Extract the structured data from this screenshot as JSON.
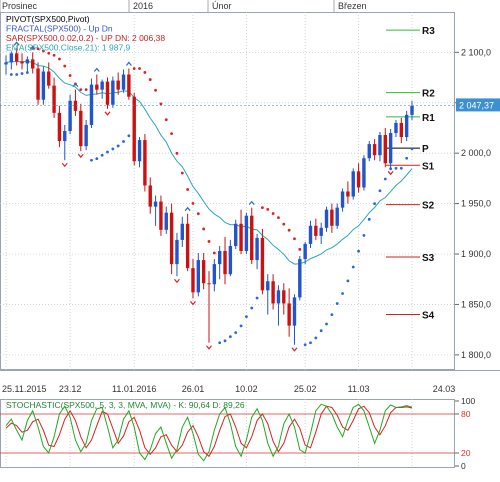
{
  "chart_data": [
    {
      "type": "candlestick",
      "instrument": "SPX500",
      "top_time_labels": [
        "Prosinec",
        "2016",
        "Únor",
        "Březen"
      ],
      "x_tick_labels": [
        "25.11.2015",
        "23.12",
        "11.01.2016",
        "26.01",
        "10.02",
        "25.02",
        "11.03",
        "24.03"
      ],
      "y_tick_labels": [
        "2 100,0",
        "2 050,0",
        "2 000,0",
        "1 950,0",
        "1 900,0",
        "1 850,0",
        "1 800,0"
      ],
      "ylim": [
        1785,
        2140
      ],
      "grid": true,
      "last_price": 2047.37,
      "last_price_label": "2 047,37",
      "indicator_legend": [
        {
          "text": "PIVOT(SPX500,Pivot)",
          "color": "#000000"
        },
        {
          "text": "FRACTAL(SPX500) - Up  Dn",
          "color": "#3355cc"
        },
        {
          "text": "SAR(SPX500,0.02,0.2) - UP  DN: 2 006,38",
          "color": "#cc2222"
        },
        {
          "text": "EMA(SPX500.Close,21): 1 987,9",
          "color": "#2aa7b8"
        }
      ],
      "pivot_levels": [
        {
          "name": "R3",
          "value": 2122,
          "color": "#33bb33"
        },
        {
          "name": "R2",
          "value": 2060,
          "color": "#33bb33"
        },
        {
          "name": "R1",
          "value": 2036,
          "color": "#33bb33"
        },
        {
          "name": "P",
          "value": 2005,
          "color": "#000000"
        },
        {
          "name": "S1",
          "value": 1988,
          "color": "#cc2222"
        },
        {
          "name": "S2",
          "value": 1949,
          "color": "#cc2222"
        },
        {
          "name": "S3",
          "value": 1897,
          "color": "#cc2222"
        },
        {
          "name": "S4",
          "value": 1840,
          "color": "#cc2222"
        }
      ],
      "candles": [
        {
          "o": 2088,
          "h": 2097,
          "l": 2078,
          "c": 2090
        },
        {
          "o": 2090,
          "h": 2101,
          "l": 2083,
          "c": 2099
        },
        {
          "o": 2099,
          "h": 2104,
          "l": 2087,
          "c": 2091
        },
        {
          "o": 2091,
          "h": 2099,
          "l": 2083,
          "c": 2089
        },
        {
          "o": 2089,
          "h": 2096,
          "l": 2081,
          "c": 2093
        },
        {
          "o": 2093,
          "h": 2100,
          "l": 2079,
          "c": 2084
        },
        {
          "o": 2084,
          "h": 2090,
          "l": 2048,
          "c": 2053
        },
        {
          "o": 2053,
          "h": 2086,
          "l": 2048,
          "c": 2081
        },
        {
          "o": 2081,
          "h": 2090,
          "l": 2064,
          "c": 2067
        },
        {
          "o": 2067,
          "h": 2075,
          "l": 2035,
          "c": 2040
        },
        {
          "o": 2040,
          "h": 2047,
          "l": 2006,
          "c": 2012
        },
        {
          "o": 2012,
          "h": 2028,
          "l": 1993,
          "c": 2022
        },
        {
          "o": 2022,
          "h": 2058,
          "l": 2019,
          "c": 2052
        },
        {
          "o": 2052,
          "h": 2063,
          "l": 2037,
          "c": 2042
        },
        {
          "o": 2042,
          "h": 2049,
          "l": 2002,
          "c": 2007
        },
        {
          "o": 2007,
          "h": 2033,
          "l": 2003,
          "c": 2028
        },
        {
          "o": 2028,
          "h": 2074,
          "l": 2025,
          "c": 2068
        },
        {
          "o": 2068,
          "h": 2078,
          "l": 2058,
          "c": 2063
        },
        {
          "o": 2063,
          "h": 2073,
          "l": 2054,
          "c": 2071
        },
        {
          "o": 2071,
          "h": 2075,
          "l": 2044,
          "c": 2048
        },
        {
          "o": 2048,
          "h": 2076,
          "l": 2045,
          "c": 2072
        },
        {
          "o": 2072,
          "h": 2080,
          "l": 2058,
          "c": 2063
        },
        {
          "o": 2063,
          "h": 2083,
          "l": 2060,
          "c": 2078
        },
        {
          "o": 2078,
          "h": 2084,
          "l": 2053,
          "c": 2056
        },
        {
          "o": 2056,
          "h": 2060,
          "l": 1988,
          "c": 1992
        },
        {
          "o": 1992,
          "h": 2016,
          "l": 1986,
          "c": 2013
        },
        {
          "o": 2013,
          "h": 2019,
          "l": 1962,
          "c": 1968
        },
        {
          "o": 1968,
          "h": 1976,
          "l": 1940,
          "c": 1947
        },
        {
          "o": 1947,
          "h": 1958,
          "l": 1928,
          "c": 1952
        },
        {
          "o": 1952,
          "h": 1958,
          "l": 1918,
          "c": 1924
        },
        {
          "o": 1924,
          "h": 1947,
          "l": 1920,
          "c": 1941
        },
        {
          "o": 1941,
          "h": 1950,
          "l": 1880,
          "c": 1890
        },
        {
          "o": 1890,
          "h": 1921,
          "l": 1878,
          "c": 1914
        },
        {
          "o": 1914,
          "h": 1937,
          "l": 1907,
          "c": 1930
        },
        {
          "o": 1930,
          "h": 1940,
          "l": 1883,
          "c": 1886
        },
        {
          "o": 1886,
          "h": 1895,
          "l": 1856,
          "c": 1862
        },
        {
          "o": 1862,
          "h": 1901,
          "l": 1858,
          "c": 1894
        },
        {
          "o": 1894,
          "h": 1901,
          "l": 1865,
          "c": 1871
        },
        {
          "o": 1871,
          "h": 1883,
          "l": 1812,
          "c": 1870
        },
        {
          "o": 1870,
          "h": 1895,
          "l": 1863,
          "c": 1890
        },
        {
          "o": 1890,
          "h": 1908,
          "l": 1875,
          "c": 1903
        },
        {
          "o": 1903,
          "h": 1917,
          "l": 1870,
          "c": 1880
        },
        {
          "o": 1880,
          "h": 1914,
          "l": 1878,
          "c": 1908
        },
        {
          "o": 1908,
          "h": 1934,
          "l": 1905,
          "c": 1930
        },
        {
          "o": 1930,
          "h": 1944,
          "l": 1900,
          "c": 1903
        },
        {
          "o": 1903,
          "h": 1941,
          "l": 1900,
          "c": 1938
        },
        {
          "o": 1938,
          "h": 1946,
          "l": 1890,
          "c": 1894
        },
        {
          "o": 1894,
          "h": 1920,
          "l": 1885,
          "c": 1916
        },
        {
          "o": 1916,
          "h": 1925,
          "l": 1860,
          "c": 1864
        },
        {
          "o": 1864,
          "h": 1880,
          "l": 1840,
          "c": 1873
        },
        {
          "o": 1873,
          "h": 1880,
          "l": 1845,
          "c": 1851
        },
        {
          "o": 1851,
          "h": 1869,
          "l": 1829,
          "c": 1864
        },
        {
          "o": 1864,
          "h": 1871,
          "l": 1840,
          "c": 1851
        },
        {
          "o": 1851,
          "h": 1866,
          "l": 1818,
          "c": 1829
        },
        {
          "o": 1829,
          "h": 1860,
          "l": 1810,
          "c": 1857
        },
        {
          "o": 1857,
          "h": 1898,
          "l": 1854,
          "c": 1895
        },
        {
          "o": 1895,
          "h": 1912,
          "l": 1890,
          "c": 1910
        },
        {
          "o": 1910,
          "h": 1933,
          "l": 1906,
          "c": 1928
        },
        {
          "o": 1928,
          "h": 1935,
          "l": 1914,
          "c": 1918
        },
        {
          "o": 1918,
          "h": 1931,
          "l": 1910,
          "c": 1926
        },
        {
          "o": 1926,
          "h": 1947,
          "l": 1922,
          "c": 1944
        },
        {
          "o": 1944,
          "h": 1950,
          "l": 1921,
          "c": 1928
        },
        {
          "o": 1928,
          "h": 1950,
          "l": 1925,
          "c": 1946
        },
        {
          "o": 1946,
          "h": 1965,
          "l": 1942,
          "c": 1962
        },
        {
          "o": 1962,
          "h": 1972,
          "l": 1950,
          "c": 1957
        },
        {
          "o": 1957,
          "h": 1985,
          "l": 1954,
          "c": 1982
        },
        {
          "o": 1982,
          "h": 1990,
          "l": 1961,
          "c": 1966
        },
        {
          "o": 1966,
          "h": 1998,
          "l": 1963,
          "c": 1995
        },
        {
          "o": 1995,
          "h": 2012,
          "l": 1992,
          "c": 2009
        },
        {
          "o": 2009,
          "h": 2014,
          "l": 1993,
          "c": 1998
        },
        {
          "o": 1998,
          "h": 2021,
          "l": 1992,
          "c": 2018
        },
        {
          "o": 2018,
          "h": 2025,
          "l": 1986,
          "c": 1990
        },
        {
          "o": 1990,
          "h": 2024,
          "l": 1985,
          "c": 2020
        },
        {
          "o": 2020,
          "h": 2033,
          "l": 2016,
          "c": 2030
        },
        {
          "o": 2030,
          "h": 2035,
          "l": 2010,
          "c": 2016
        },
        {
          "o": 2016,
          "h": 2042,
          "l": 2012,
          "c": 2038
        },
        {
          "o": 2038,
          "h": 2052,
          "l": 2033,
          "c": 2047
        }
      ],
      "stochastic": {
        "label": "STOCHASTIC(SPX500, 5, 3, 3, MVA, MVA) - K: 90,64  D: 89,26",
        "y_tick_labels": [
          "100",
          "80",
          "20",
          "0"
        ],
        "levels": [
          80,
          20
        ],
        "k": [
          62,
          72,
          55,
          40,
          70,
          85,
          60,
          30,
          20,
          45,
          80,
          92,
          75,
          40,
          22,
          35,
          70,
          88,
          90,
          60,
          28,
          40,
          72,
          85,
          60,
          20,
          10,
          25,
          50,
          60,
          35,
          12,
          25,
          60,
          75,
          50,
          18,
          8,
          22,
          55,
          80,
          90,
          65,
          30,
          15,
          40,
          75,
          88,
          70,
          35,
          15,
          30,
          65,
          80,
          60,
          25,
          20,
          50,
          85,
          95,
          92,
          80,
          60,
          45,
          70,
          90,
          95,
          85,
          60,
          35,
          55,
          85,
          94,
          90,
          91,
          93,
          90.64
        ],
        "d": [
          58,
          66,
          62,
          52,
          55,
          68,
          72,
          55,
          32,
          30,
          48,
          72,
          85,
          70,
          45,
          28,
          40,
          62,
          84,
          80,
          58,
          35,
          46,
          68,
          75,
          55,
          28,
          18,
          28,
          45,
          48,
          32,
          22,
          32,
          52,
          62,
          45,
          22,
          15,
          30,
          55,
          76,
          80,
          60,
          35,
          28,
          45,
          70,
          80,
          65,
          38,
          22,
          35,
          60,
          72,
          58,
          32,
          28,
          52,
          80,
          92,
          90,
          78,
          60,
          55,
          70,
          88,
          92,
          82,
          60,
          48,
          62,
          82,
          90,
          90,
          91,
          89.26
        ]
      }
    }
  ]
}
